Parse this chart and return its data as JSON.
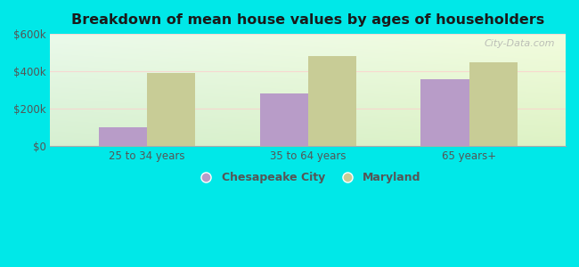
{
  "title": "Breakdown of mean house values by ages of householders",
  "categories": [
    "25 to 34 years",
    "35 to 64 years",
    "65 years+"
  ],
  "chesapeake_values": [
    100000,
    280000,
    360000
  ],
  "maryland_values": [
    390000,
    480000,
    450000
  ],
  "chesapeake_color": "#b89cc8",
  "maryland_color": "#c8cc96",
  "ylim": [
    0,
    600000
  ],
  "yticks": [
    0,
    200000,
    400000,
    600000
  ],
  "ytick_labels": [
    "$0",
    "$200k",
    "$400k",
    "$600k"
  ],
  "background_outer": "#00e8e8",
  "legend_chesapeake": "Chesapeake City",
  "legend_maryland": "Maryland",
  "bar_width": 0.3,
  "watermark": "City-Data.com"
}
